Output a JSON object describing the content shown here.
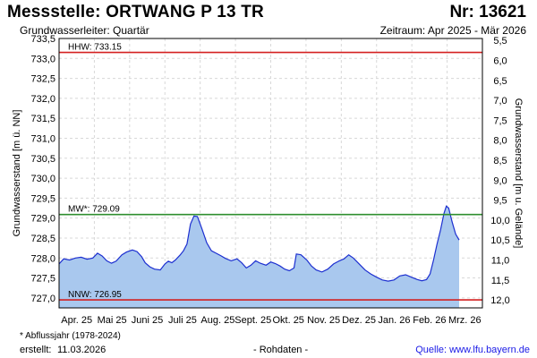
{
  "header": {
    "title": "Messstelle: ORTWANG P 13 TR",
    "number": "Nr: 13621",
    "subtitle": "Grundwasserleiter: Quartär",
    "period": "Zeitraum: Apr 2025 - Mär 2026"
  },
  "footer": {
    "footnote": "* Abflussjahr (1978-2024)",
    "created_label": "erstellt:",
    "created_date": "11.03.2026",
    "raw": "- Rohdaten -",
    "source": "Quelle: www.lfu.bayern.de"
  },
  "colors": {
    "area": "#a9c8ee",
    "line": "#1c2fd0",
    "hhw": "#d42020",
    "mw": "#2f8f2f",
    "nnw": "#d42020",
    "grid": "#d8d8d8"
  },
  "chart_data": {
    "type": "area",
    "ylabel_left": "Grundwasserstand [m ü. NN]",
    "ylabel_right": "Grundwasserstand [m u. Gelände]",
    "ylim": [
      726.75,
      733.5
    ],
    "yticks_left": [
      "727,0",
      "727,5",
      "728,0",
      "728,5",
      "729,0",
      "729,5",
      "730,0",
      "730,5",
      "731,0",
      "731,5",
      "732,0",
      "732,5",
      "733,0",
      "733,5"
    ],
    "yticks_right": [
      "5,5",
      "6,0",
      "6,5",
      "7,0",
      "7,5",
      "8,0",
      "8,5",
      "9,0",
      "9,5",
      "10,0",
      "10,5",
      "11,0",
      "11,5",
      "12,0"
    ],
    "ground_level": 738.95,
    "xlim": [
      "2025-04-01",
      "2026-03-31"
    ],
    "month_labels": [
      "Apr. 25",
      "Mai 25",
      "Juni 25",
      "Juli 25",
      "Aug. 25",
      "Sept. 25",
      "Okt. 25",
      "Nov. 25",
      "Dez. 25",
      "Jan. 26",
      "Feb. 26",
      "Mrz. 26"
    ],
    "reference_lines": [
      {
        "label": "HHW: 733.15",
        "value": 733.15,
        "color_key": "hhw"
      },
      {
        "label": "MW*: 729.09",
        "value": 729.09,
        "color_key": "mw"
      },
      {
        "label": "NNW: 726.95",
        "value": 726.95,
        "color_key": "nnw"
      }
    ],
    "series": [
      {
        "points": [
          [
            "2025-04-01",
            727.85
          ],
          [
            "2025-04-05",
            727.98
          ],
          [
            "2025-04-10",
            727.95
          ],
          [
            "2025-04-15",
            728.0
          ],
          [
            "2025-04-20",
            728.02
          ],
          [
            "2025-04-25",
            727.97
          ],
          [
            "2025-04-30",
            728.0
          ],
          [
            "2025-05-04",
            728.12
          ],
          [
            "2025-05-08",
            728.05
          ],
          [
            "2025-05-12",
            727.93
          ],
          [
            "2025-05-16",
            727.87
          ],
          [
            "2025-05-20",
            727.92
          ],
          [
            "2025-05-25",
            728.08
          ],
          [
            "2025-05-29",
            728.15
          ],
          [
            "2025-06-03",
            728.2
          ],
          [
            "2025-06-07",
            728.16
          ],
          [
            "2025-06-11",
            728.03
          ],
          [
            "2025-06-14",
            727.88
          ],
          [
            "2025-06-18",
            727.78
          ],
          [
            "2025-06-22",
            727.72
          ],
          [
            "2025-06-27",
            727.7
          ],
          [
            "2025-07-01",
            727.85
          ],
          [
            "2025-07-04",
            727.92
          ],
          [
            "2025-07-07",
            727.88
          ],
          [
            "2025-07-10",
            727.95
          ],
          [
            "2025-07-14",
            728.07
          ],
          [
            "2025-07-17",
            728.18
          ],
          [
            "2025-07-20",
            728.35
          ],
          [
            "2025-07-23",
            728.85
          ],
          [
            "2025-07-26",
            729.05
          ],
          [
            "2025-07-29",
            729.04
          ],
          [
            "2025-08-02",
            728.72
          ],
          [
            "2025-08-06",
            728.38
          ],
          [
            "2025-08-10",
            728.18
          ],
          [
            "2025-08-14",
            728.12
          ],
          [
            "2025-08-18",
            728.06
          ],
          [
            "2025-08-22",
            727.99
          ],
          [
            "2025-08-27",
            727.93
          ],
          [
            "2025-09-01",
            727.98
          ],
          [
            "2025-09-05",
            727.88
          ],
          [
            "2025-09-09",
            727.75
          ],
          [
            "2025-09-13",
            727.82
          ],
          [
            "2025-09-17",
            727.93
          ],
          [
            "2025-09-21",
            727.87
          ],
          [
            "2025-09-26",
            727.82
          ],
          [
            "2025-09-30",
            727.9
          ],
          [
            "2025-10-04",
            727.86
          ],
          [
            "2025-10-08",
            727.8
          ],
          [
            "2025-10-12",
            727.72
          ],
          [
            "2025-10-16",
            727.68
          ],
          [
            "2025-10-20",
            727.75
          ],
          [
            "2025-10-22",
            728.1
          ],
          [
            "2025-10-26",
            728.08
          ],
          [
            "2025-10-31",
            727.95
          ],
          [
            "2025-11-04",
            727.8
          ],
          [
            "2025-11-08",
            727.7
          ],
          [
            "2025-11-13",
            727.65
          ],
          [
            "2025-11-18",
            727.72
          ],
          [
            "2025-11-23",
            727.85
          ],
          [
            "2025-11-28",
            727.93
          ],
          [
            "2025-12-02",
            727.98
          ],
          [
            "2025-12-06",
            728.08
          ],
          [
            "2025-12-10",
            728.0
          ],
          [
            "2025-12-15",
            727.85
          ],
          [
            "2025-12-20",
            727.7
          ],
          [
            "2025-12-25",
            727.6
          ],
          [
            "2025-12-30",
            727.52
          ],
          [
            "2026-01-04",
            727.45
          ],
          [
            "2026-01-09",
            727.42
          ],
          [
            "2026-01-14",
            727.45
          ],
          [
            "2026-01-19",
            727.55
          ],
          [
            "2026-01-24",
            727.58
          ],
          [
            "2026-01-29",
            727.52
          ],
          [
            "2026-02-03",
            727.46
          ],
          [
            "2026-02-07",
            727.43
          ],
          [
            "2026-02-11",
            727.46
          ],
          [
            "2026-02-14",
            727.6
          ],
          [
            "2026-02-17",
            727.95
          ],
          [
            "2026-02-20",
            728.35
          ],
          [
            "2026-02-23",
            728.7
          ],
          [
            "2026-02-26",
            729.12
          ],
          [
            "2026-02-28",
            729.3
          ],
          [
            "2026-03-02",
            729.25
          ],
          [
            "2026-03-05",
            728.9
          ],
          [
            "2026-03-08",
            728.6
          ],
          [
            "2026-03-11",
            728.45
          ]
        ]
      }
    ]
  }
}
